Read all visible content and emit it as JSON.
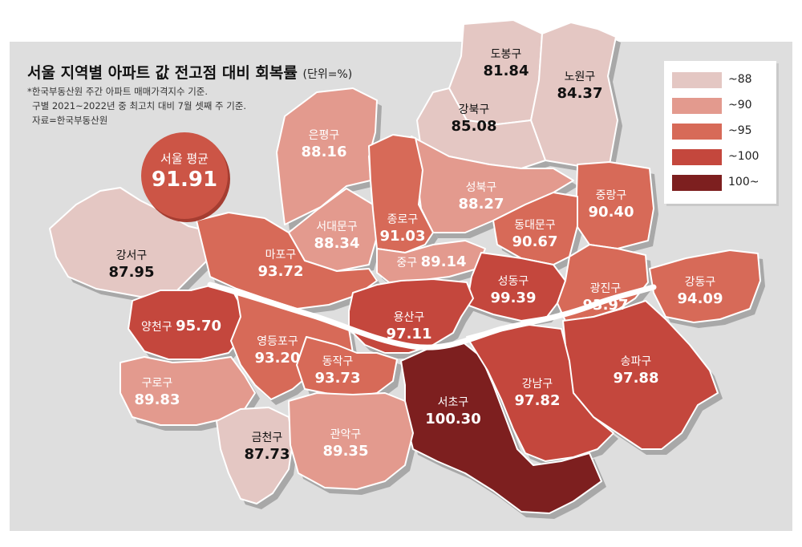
{
  "title": "서울 지역별 아파트 값 전고점 대비 회복률",
  "unit": "(단위=%)",
  "notes": [
    "*한국부동산원 주간 아파트 매매가격지수 기준.",
    "구별 2021~2022년 중 최고치 대비 7월 셋째 주 기준.",
    "자료=한국부동산원"
  ],
  "average": {
    "label": "서울 평균",
    "value": "91.91"
  },
  "legend": [
    {
      "label": "~88",
      "color": "#e4c7c3"
    },
    {
      "label": "~90",
      "color": "#e39a8e"
    },
    {
      "label": "~95",
      "color": "#d76a58"
    },
    {
      "label": "~100",
      "color": "#c4473d"
    },
    {
      "label": "100~",
      "color": "#7d1f1f"
    }
  ],
  "districts": {
    "dobong": {
      "name": "도봉구",
      "value": "81.84",
      "tier": 0
    },
    "nowon": {
      "name": "노원구",
      "value": "84.37",
      "tier": 0
    },
    "gangbuk": {
      "name": "강북구",
      "value": "85.08",
      "tier": 0
    },
    "eunpyeong": {
      "name": "은평구",
      "value": "88.16",
      "tier": 1
    },
    "seongbuk": {
      "name": "성북구",
      "value": "88.27",
      "tier": 1
    },
    "jungnang": {
      "name": "중랑구",
      "value": "90.40",
      "tier": 2
    },
    "seodaemun": {
      "name": "서대문구",
      "value": "88.34",
      "tier": 1
    },
    "jongno": {
      "name": "종로구",
      "value": "91.03",
      "tier": 2
    },
    "dongdaemun": {
      "name": "동대문구",
      "value": "90.67",
      "tier": 2
    },
    "gangseo": {
      "name": "강서구",
      "value": "87.95",
      "tier": 0
    },
    "mapo": {
      "name": "마포구",
      "value": "93.72",
      "tier": 2
    },
    "jung": {
      "name": "중구",
      "value": "89.14",
      "tier": 1
    },
    "seongdong": {
      "name": "성동구",
      "value": "99.39",
      "tier": 3
    },
    "gwangjin": {
      "name": "광진구",
      "value": "93.97",
      "tier": 2
    },
    "gangdong": {
      "name": "강동구",
      "value": "94.09",
      "tier": 2
    },
    "yangcheon": {
      "name": "양천구",
      "value": "95.70",
      "tier": 3
    },
    "yeongdeungpo": {
      "name": "영등포구",
      "value": "93.20",
      "tier": 2
    },
    "yongsan": {
      "name": "용산구",
      "value": "97.11",
      "tier": 3
    },
    "songpa": {
      "name": "송파구",
      "value": "97.88",
      "tier": 3
    },
    "dongjak": {
      "name": "동작구",
      "value": "93.73",
      "tier": 2
    },
    "guro": {
      "name": "구로구",
      "value": "89.83",
      "tier": 1
    },
    "seocho": {
      "name": "서초구",
      "value": "100.30",
      "tier": 4
    },
    "gangnam": {
      "name": "강남구",
      "value": "97.82",
      "tier": 3
    },
    "geumcheon": {
      "name": "금천구",
      "value": "87.73",
      "tier": 0
    },
    "gwanak": {
      "name": "관악구",
      "value": "89.35",
      "tier": 1
    }
  }
}
